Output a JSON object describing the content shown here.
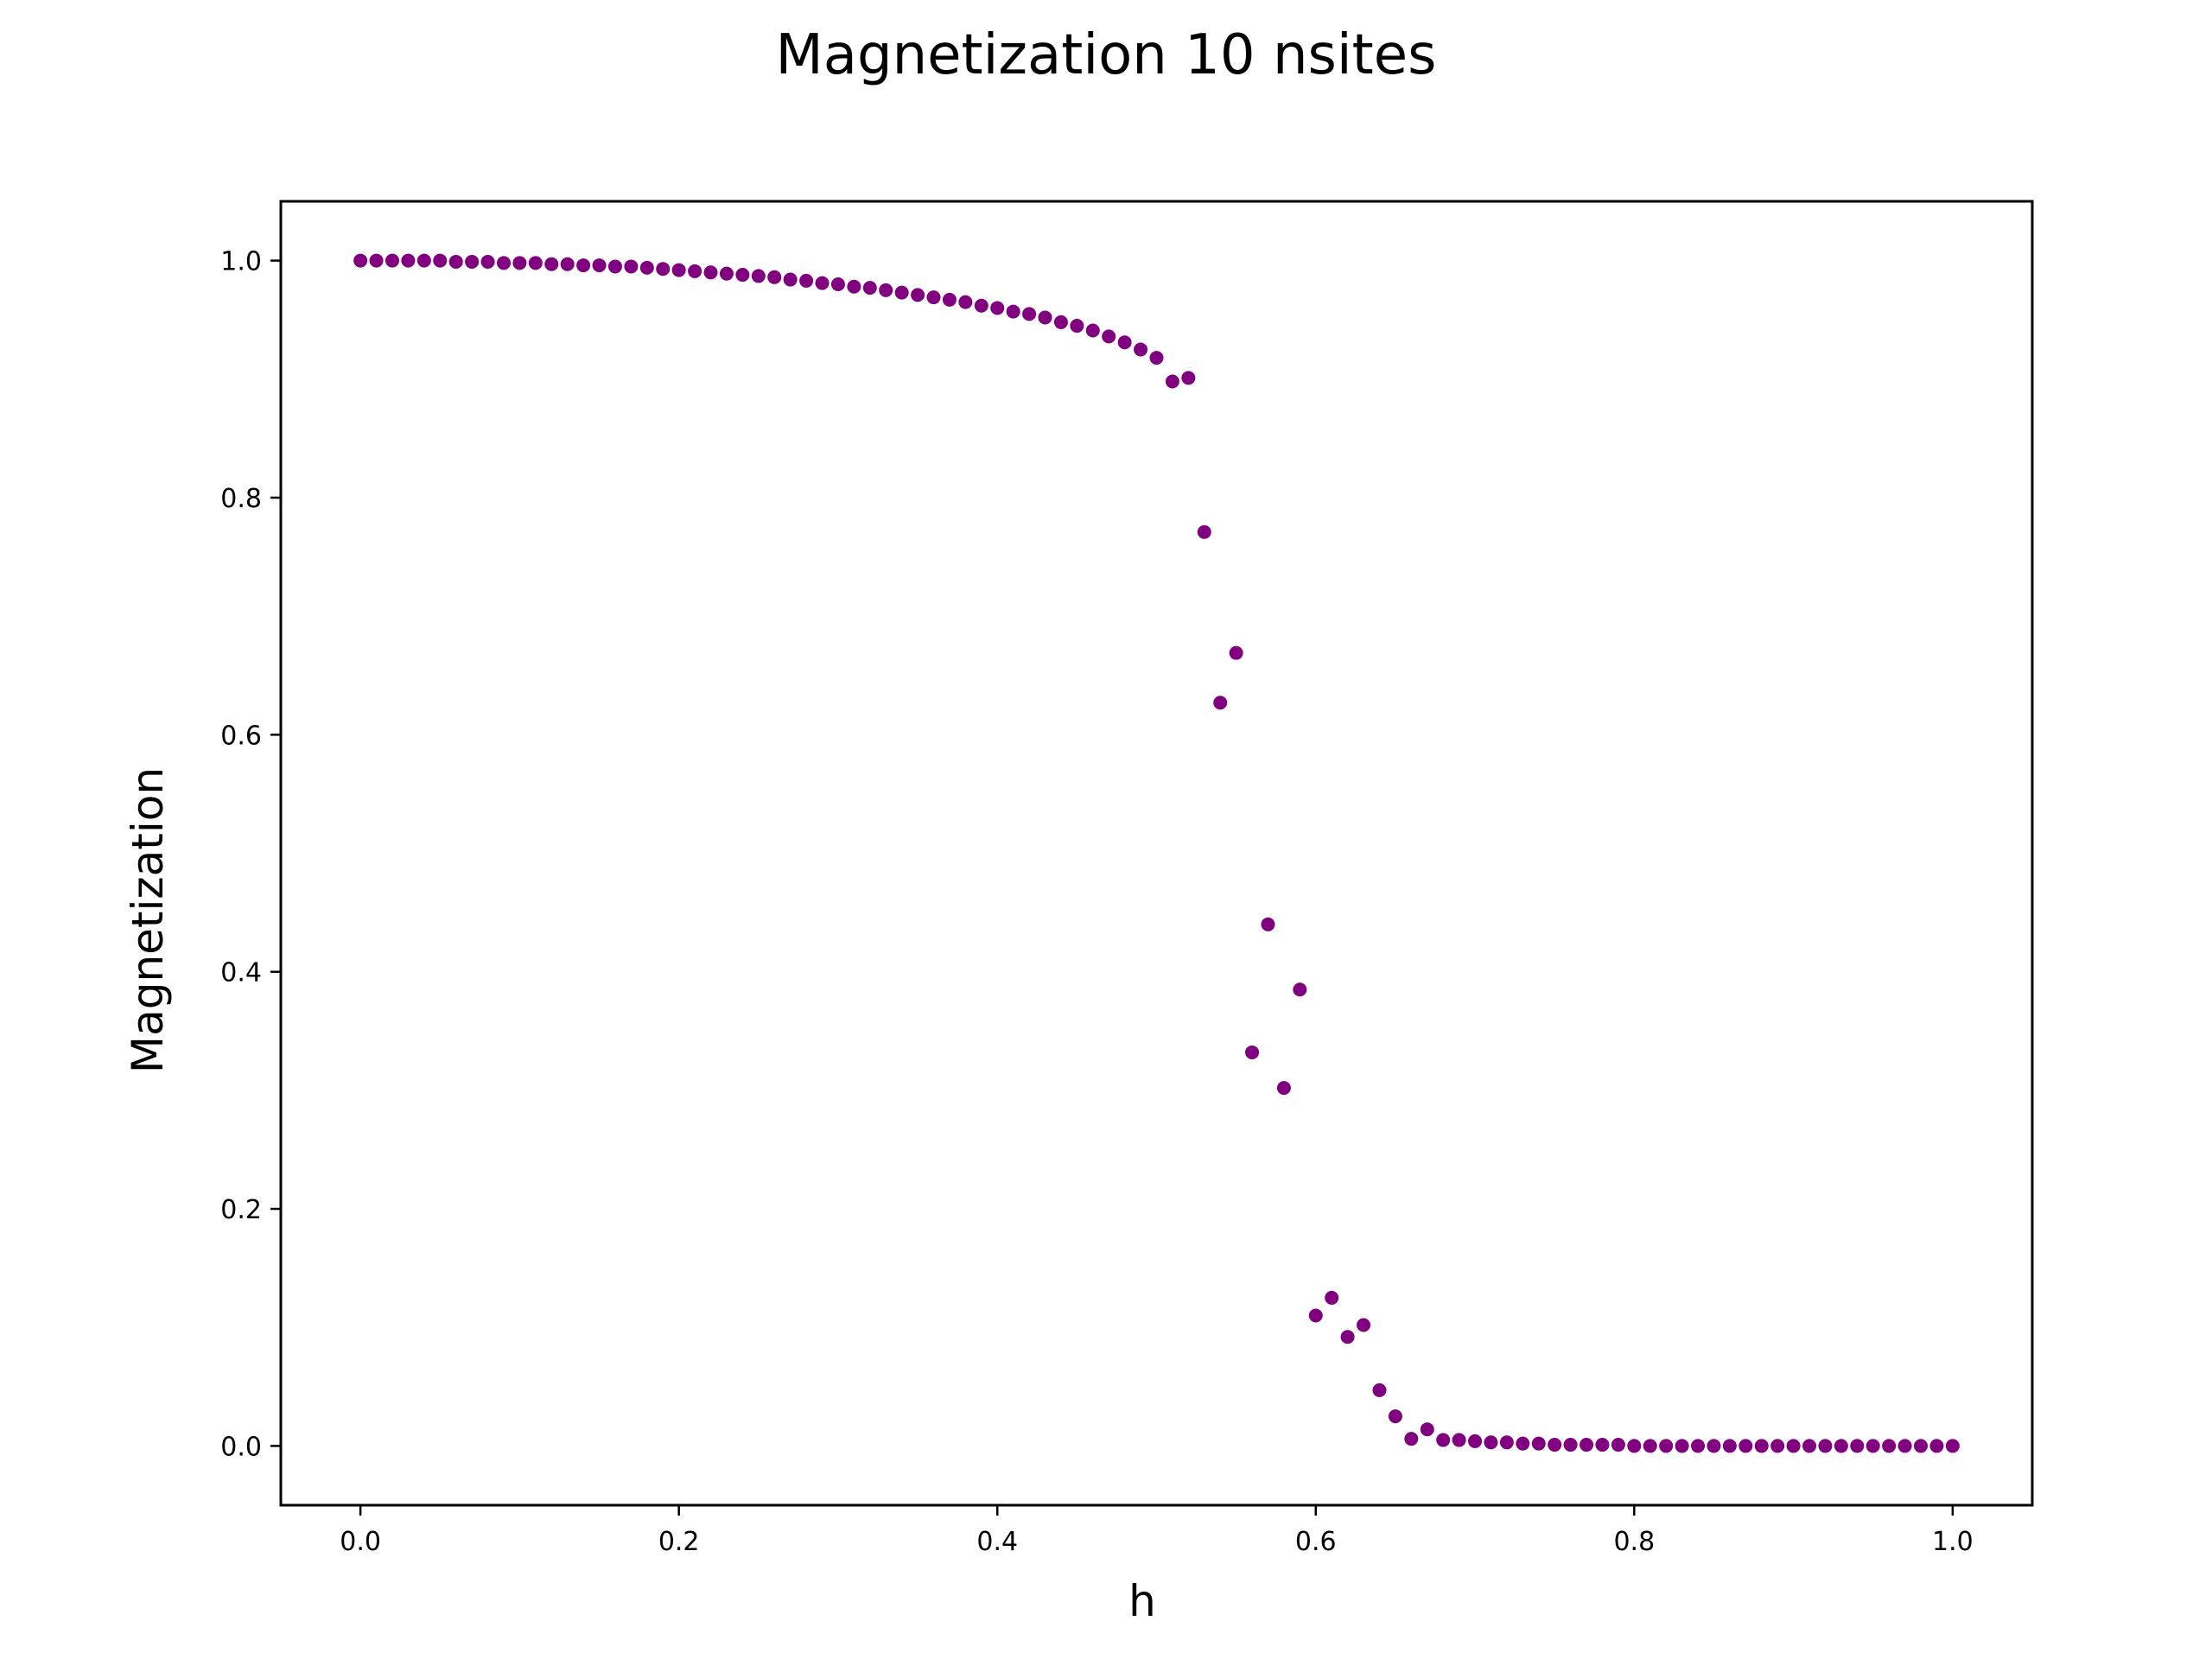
{
  "chart_data": {
    "type": "scatter",
    "title": "Magnetization 10 nsites",
    "xlabel": "h",
    "ylabel": "Magnetization",
    "xlim": [
      -0.05,
      1.05
    ],
    "ylim": [
      -0.05,
      1.05
    ],
    "xticks": [
      0.0,
      0.2,
      0.4,
      0.6,
      0.8,
      1.0
    ],
    "yticks": [
      0.0,
      0.2,
      0.4,
      0.6,
      0.8,
      1.0
    ],
    "xtick_labels": [
      "0.0",
      "0.2",
      "0.4",
      "0.6",
      "0.8",
      "1.0"
    ],
    "ytick_labels": [
      "0.0",
      "0.2",
      "0.4",
      "0.6",
      "0.8",
      "1.0"
    ],
    "grid": false,
    "marker_color": "#800080",
    "series": [
      {
        "x": [
          0.0,
          0.01,
          0.02,
          0.03,
          0.04,
          0.05,
          0.06,
          0.07,
          0.08,
          0.09,
          0.1,
          0.11,
          0.12,
          0.13,
          0.14,
          0.15,
          0.16,
          0.17,
          0.18,
          0.19,
          0.2,
          0.21,
          0.22,
          0.23,
          0.24,
          0.25,
          0.26,
          0.27,
          0.28,
          0.29,
          0.3,
          0.31,
          0.32,
          0.33,
          0.34,
          0.35,
          0.36,
          0.37,
          0.38,
          0.39,
          0.4,
          0.41,
          0.42,
          0.43,
          0.44,
          0.45,
          0.46,
          0.47,
          0.48,
          0.49,
          0.5,
          0.51,
          0.52,
          0.53,
          0.54,
          0.55,
          0.56,
          0.57,
          0.58,
          0.59,
          0.6,
          0.61,
          0.62,
          0.63,
          0.64,
          0.65,
          0.66,
          0.67,
          0.68,
          0.69,
          0.7,
          0.71,
          0.72,
          0.73,
          0.74,
          0.75,
          0.76,
          0.77,
          0.78,
          0.79,
          0.8,
          0.81,
          0.82,
          0.83,
          0.84,
          0.85,
          0.86,
          0.87,
          0.88,
          0.89,
          0.9,
          0.91,
          0.92,
          0.93,
          0.94,
          0.95,
          0.96,
          0.97,
          0.98,
          0.99,
          1.0
        ],
        "y": [
          1.0,
          1.0,
          1.0,
          1.0,
          1.0,
          1.0,
          0.999,
          0.999,
          0.999,
          0.998,
          0.998,
          0.998,
          0.997,
          0.997,
          0.996,
          0.996,
          0.995,
          0.995,
          0.994,
          0.993,
          0.992,
          0.991,
          0.99,
          0.989,
          0.988,
          0.987,
          0.986,
          0.984,
          0.983,
          0.981,
          0.98,
          0.978,
          0.977,
          0.975,
          0.973,
          0.971,
          0.969,
          0.967,
          0.965,
          0.962,
          0.96,
          0.957,
          0.955,
          0.952,
          0.948,
          0.945,
          0.941,
          0.936,
          0.931,
          0.925,
          0.918,
          0.898,
          0.901,
          0.771,
          0.627,
          0.669,
          0.332,
          0.44,
          0.302,
          0.385,
          0.11,
          0.125,
          0.092,
          0.102,
          0.047,
          0.025,
          0.006,
          0.014,
          0.005,
          0.005,
          0.004,
          0.003,
          0.003,
          0.002,
          0.002,
          0.001,
          0.001,
          0.001,
          0.001,
          0.001,
          0.0,
          0.0,
          0.0,
          0.0,
          0.0,
          0.0,
          0.0,
          0.0,
          0.0,
          0.0,
          0.0,
          0.0,
          0.0,
          0.0,
          0.0,
          0.0,
          0.0,
          0.0,
          0.0,
          0.0,
          0.0
        ]
      }
    ]
  }
}
